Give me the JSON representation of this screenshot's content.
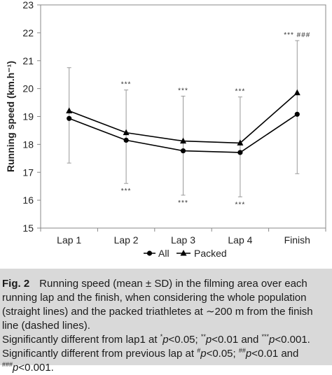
{
  "chart_data": {
    "type": "line",
    "categories": [
      "Lap 1",
      "Lap 2",
      "Lap 3",
      "Lap 4",
      "Finish"
    ],
    "series": [
      {
        "name": "All",
        "marker": "circle",
        "values": [
          18.93,
          18.15,
          17.77,
          17.71,
          19.08
        ]
      },
      {
        "name": "Packed",
        "marker": "triangle",
        "values": [
          19.2,
          18.42,
          18.12,
          18.05,
          19.85
        ]
      }
    ],
    "error_bars": {
      "upper": [
        20.75,
        19.95,
        19.73,
        19.7,
        21.72
      ],
      "lower": [
        17.33,
        16.6,
        16.18,
        16.12,
        16.95
      ]
    },
    "annotations_above": [
      "",
      "***",
      "***",
      "***",
      "*** ###"
    ],
    "annotations_below": [
      "",
      "***",
      "***",
      "***",
      ""
    ],
    "ylabel": "Running speed (km.h⁻¹)",
    "ylim": [
      15,
      23
    ],
    "yticks": [
      15,
      16,
      17,
      18,
      19,
      20,
      21,
      22,
      23
    ],
    "grid": false,
    "legend_position": "bottom",
    "colors": {
      "line": "#000000",
      "error_bar": "#999999",
      "axis": "#888888"
    }
  },
  "caption": {
    "label": "Fig. 2",
    "text": "Running speed (mean ± SD) in the filming area over each running lap and the finish, when considering the whole population (straight lines) and the packed triathletes at ∼200 m from the finish line (dashed lines).",
    "sig1_prefix": "Significantly different from lap1 at ",
    "sig2_prefix": "Significantly different from previous lap at ",
    "p_text": "p",
    "t05": "<0.05; ",
    "t01_and": "<0.01 and ",
    "t001": "<0.001.",
    "star1": "*",
    "star2": "**",
    "star3": "***",
    "hash1": "#",
    "hash2": "##",
    "hash3": "###"
  }
}
